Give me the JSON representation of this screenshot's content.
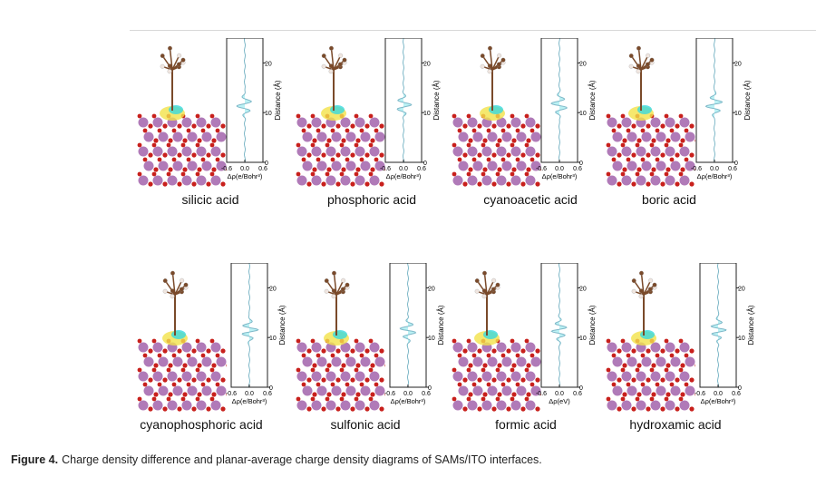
{
  "figure": {
    "caption_label": "Figure 4.",
    "caption_text": "Charge density difference and planar-average charge density diagrams of SAMs/ITO interfaces.",
    "panels": [
      {
        "name": "silicic acid",
        "xlabel": "Δρ(e/Bohr³)"
      },
      {
        "name": "phosphoric acid",
        "xlabel": "Δρ(e/Bohr³)"
      },
      {
        "name": "cyanoacetic acid",
        "xlabel": "Δρ(e/Bohr³)"
      },
      {
        "name": "boric acid",
        "xlabel": "Δρ(e/Bohr³)"
      },
      {
        "name": "cyanophosphoric acid",
        "xlabel": "Δρ(e/Bohr³)"
      },
      {
        "name": "sulfonic acid",
        "xlabel": "Δρ(e/Bohr³)"
      },
      {
        "name": "formic acid",
        "xlabel": "Δρ(eV)"
      },
      {
        "name": "hydroxamic acid",
        "xlabel": "Δρ(e/Bohr³)"
      }
    ],
    "axis": {
      "ylabel": "Distance (Å)",
      "yticks": [
        "0",
        "10",
        "20"
      ],
      "xticks": [
        "-0.6",
        "0.0",
        "0.6"
      ],
      "xlim": [
        -0.6,
        0.6
      ],
      "ylim": [
        0,
        25
      ]
    },
    "colors": {
      "indium": "#b07ab8",
      "oxygen": "#c8201c",
      "carbon": "#7a4a2a",
      "hydrogen": "#f0e6e0",
      "positive": "#f2e24a",
      "negative": "#38d8e0",
      "curve": "#7fb8c8"
    }
  }
}
